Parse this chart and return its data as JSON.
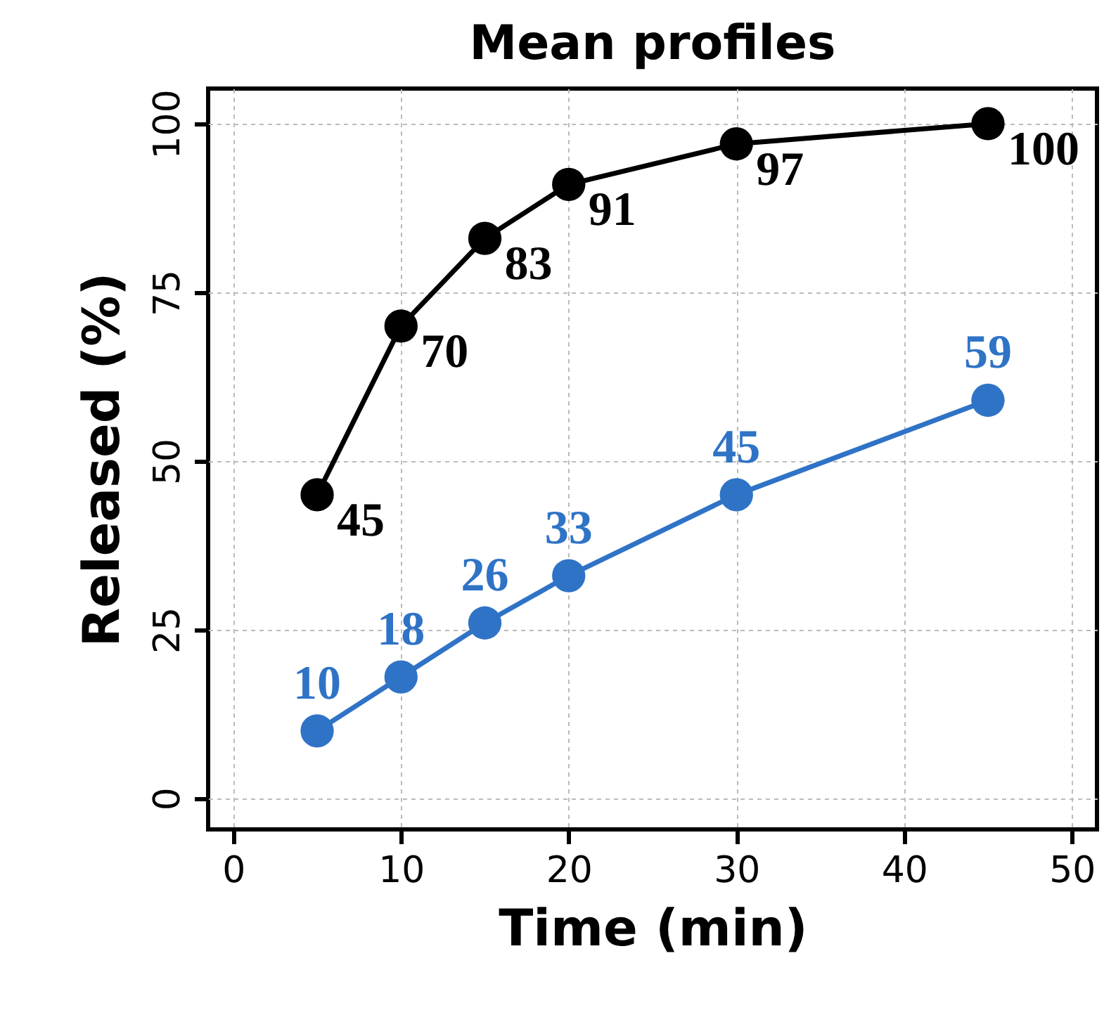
{
  "chart_data": {
    "type": "line",
    "title": "Mean profiles",
    "xlabel": "Time (min)",
    "ylabel": "Released (%)",
    "x": [
      5,
      10,
      15,
      20,
      30,
      45
    ],
    "series": [
      {
        "color": "#000000",
        "values": [
          45,
          70,
          83,
          91,
          97,
          100
        ]
      },
      {
        "color": "#2f73c6",
        "values": [
          10,
          18,
          26,
          33,
          45,
          59
        ]
      }
    ],
    "xlim": [
      -1.5,
      51.5
    ],
    "xticks": [
      0,
      10,
      20,
      30,
      40,
      50
    ],
    "ylim": [
      -4.6,
      105.2
    ],
    "yticks": [
      0,
      25,
      50,
      75,
      100
    ],
    "grid": true,
    "marker": "circle",
    "line_style": "solid",
    "data_labels": true
  }
}
